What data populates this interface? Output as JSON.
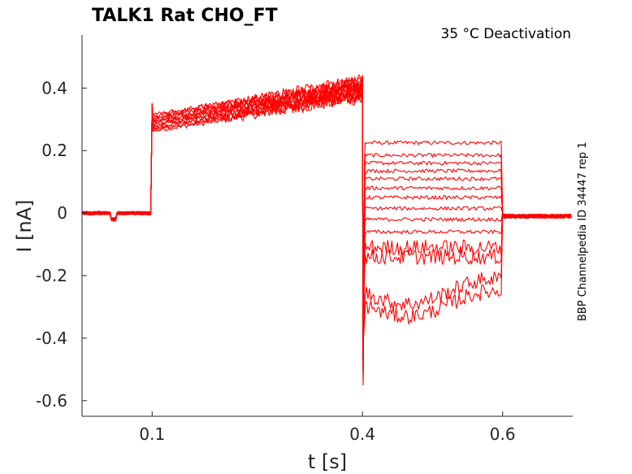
{
  "chart_data": {
    "type": "line",
    "title": "TALK1  Rat  CHO_FT",
    "subtitle": "35 °C  Deactivation",
    "side_label": "BBP Channelpedia ID 34447 rep 1",
    "xlabel": "t [s]",
    "ylabel": "I [nA]",
    "xlim": [
      0,
      0.7
    ],
    "ylim": [
      -0.65,
      0.57
    ],
    "x_ticks": [
      0.1,
      0.4,
      0.6
    ],
    "x_tick_labels": [
      "0.1",
      "0.4",
      "0.6"
    ],
    "y_ticks": [
      0.4,
      0.2,
      0,
      -0.2,
      -0.4,
      -0.6
    ],
    "y_tick_labels": [
      "0.4",
      "0.2",
      "0",
      "-0.2",
      "-0.4",
      "-0.6"
    ],
    "grid": false,
    "legend": "none",
    "trace_color": "#ff0000",
    "protocol": {
      "baseline_end": 0.1,
      "step_end": 0.4,
      "test_end": 0.6,
      "baseline_level": 0,
      "step_start_level": 0.29,
      "step_end_level": 0.4,
      "tail_level": -0.01
    },
    "series": [
      {
        "test_level": 0.225
      },
      {
        "test_level": 0.185
      },
      {
        "test_level": 0.16
      },
      {
        "test_level": 0.135
      },
      {
        "test_level": 0.11
      },
      {
        "test_level": 0.08
      },
      {
        "test_level": 0.05
      },
      {
        "test_level": 0.015
      },
      {
        "test_level": -0.02
      },
      {
        "test_level": -0.06
      },
      {
        "test_level": -0.11
      },
      {
        "test_level": -0.14
      },
      {
        "test_level": -0.25
      },
      {
        "test_level": -0.29
      }
    ]
  }
}
